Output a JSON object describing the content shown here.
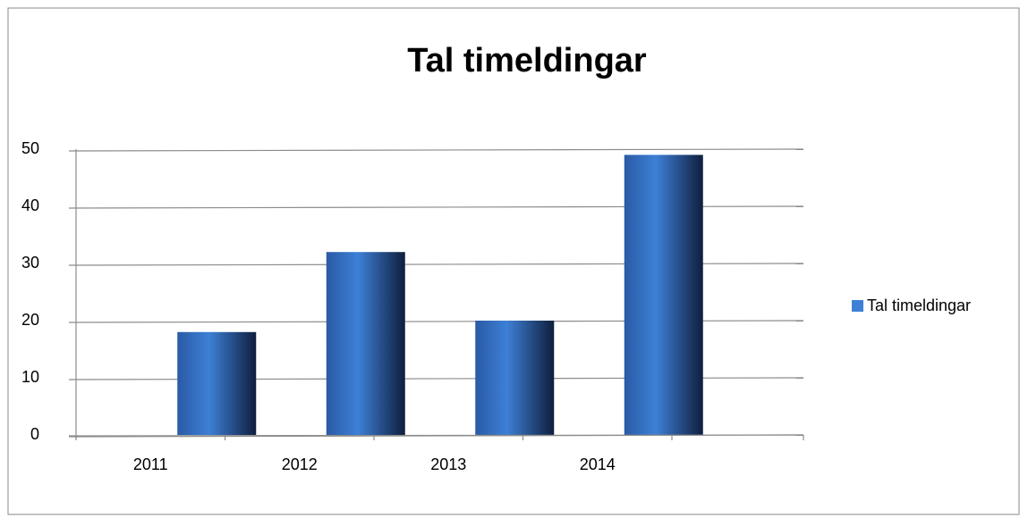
{
  "chart_data": {
    "type": "bar",
    "title": "Tal timeldingar",
    "categories": [
      "2011",
      "2012",
      "2013",
      "2014"
    ],
    "series": [
      {
        "name": "Tal timeldingar",
        "color": "#3d80d6",
        "values": [
          18,
          32,
          20,
          49
        ]
      }
    ],
    "ylim": [
      0,
      50
    ],
    "yticks": [
      0,
      10,
      20,
      30,
      40,
      50
    ],
    "grid": true,
    "legend": "right"
  }
}
